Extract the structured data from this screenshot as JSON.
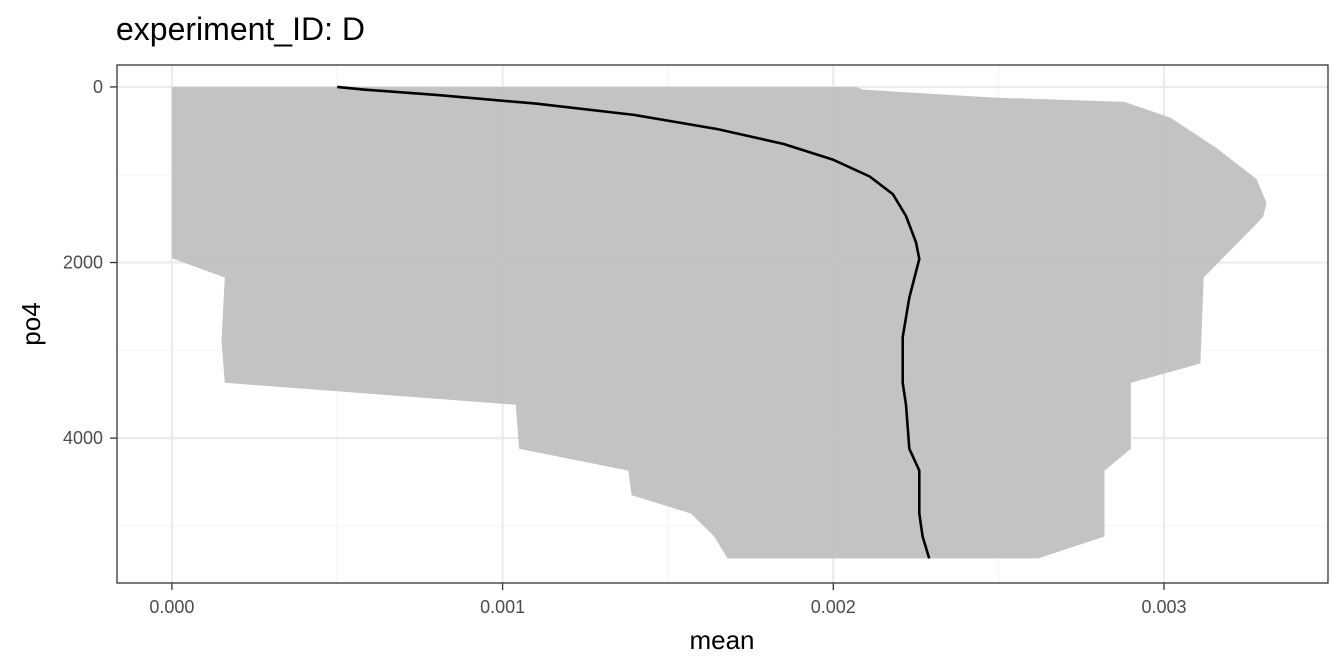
{
  "chart_data": {
    "type": "area",
    "title": "experiment_ID: D",
    "xlabel": "mean",
    "ylabel": "po4",
    "xlim": [
      -0.000166,
      0.003496
    ],
    "ylim": [
      5650,
      -250
    ],
    "y_reversed": true,
    "grid": true,
    "x_ticks": [
      0,
      0.001,
      0.002,
      0.003
    ],
    "x_tick_labels": [
      "0.000",
      "0.001",
      "0.002",
      "0.003"
    ],
    "y_ticks": [
      0,
      2000,
      4000
    ],
    "y_tick_labels": [
      "0",
      "2000",
      "4000"
    ],
    "colors": {
      "ribbon": "#bebebe",
      "line": "#000000",
      "panel_border": "#333333",
      "grid_major": "#ebebeb",
      "grid_minor": "#f5f5f5"
    },
    "series": [
      {
        "kind": "ribbon",
        "lower": [
          [
            0,
            0
          ],
          [
            0,
            1950
          ],
          [
            0.00016,
            2170
          ],
          [
            0.00015,
            2890
          ],
          [
            0.00016,
            3370
          ],
          [
            0.00104,
            3620
          ],
          [
            0.00105,
            4120
          ],
          [
            0.00138,
            4370
          ],
          [
            0.00139,
            4650
          ],
          [
            0.00157,
            4860
          ],
          [
            0.00164,
            5120
          ],
          [
            0.00168,
            5370
          ]
        ],
        "upper": [
          [
            0.00207,
            0
          ],
          [
            0.00209,
            30
          ],
          [
            0.00248,
            120
          ],
          [
            0.00288,
            170
          ],
          [
            0.00302,
            350
          ],
          [
            0.00316,
            700
          ],
          [
            0.00328,
            1050
          ],
          [
            0.00331,
            1320
          ],
          [
            0.0033,
            1480
          ],
          [
            0.00323,
            1750
          ],
          [
            0.00312,
            2170
          ],
          [
            0.00311,
            3150
          ],
          [
            0.0029,
            3370
          ],
          [
            0.0029,
            4120
          ],
          [
            0.00282,
            4370
          ],
          [
            0.00282,
            5120
          ],
          [
            0.00262,
            5370
          ]
        ]
      },
      {
        "kind": "line",
        "points": [
          [
            0.0005,
            0
          ],
          [
            0.00058,
            30
          ],
          [
            0.0008,
            90
          ],
          [
            0.0011,
            190
          ],
          [
            0.0014,
            320
          ],
          [
            0.00165,
            480
          ],
          [
            0.00185,
            650
          ],
          [
            0.002,
            830
          ],
          [
            0.00211,
            1020
          ],
          [
            0.00218,
            1220
          ],
          [
            0.00222,
            1470
          ],
          [
            0.00225,
            1770
          ],
          [
            0.00226,
            1960
          ],
          [
            0.00223,
            2400
          ],
          [
            0.00221,
            2850
          ],
          [
            0.00221,
            3370
          ],
          [
            0.00222,
            3620
          ],
          [
            0.00223,
            4120
          ],
          [
            0.00226,
            4370
          ],
          [
            0.00226,
            4860
          ],
          [
            0.00227,
            5120
          ],
          [
            0.00229,
            5370
          ]
        ]
      }
    ]
  }
}
